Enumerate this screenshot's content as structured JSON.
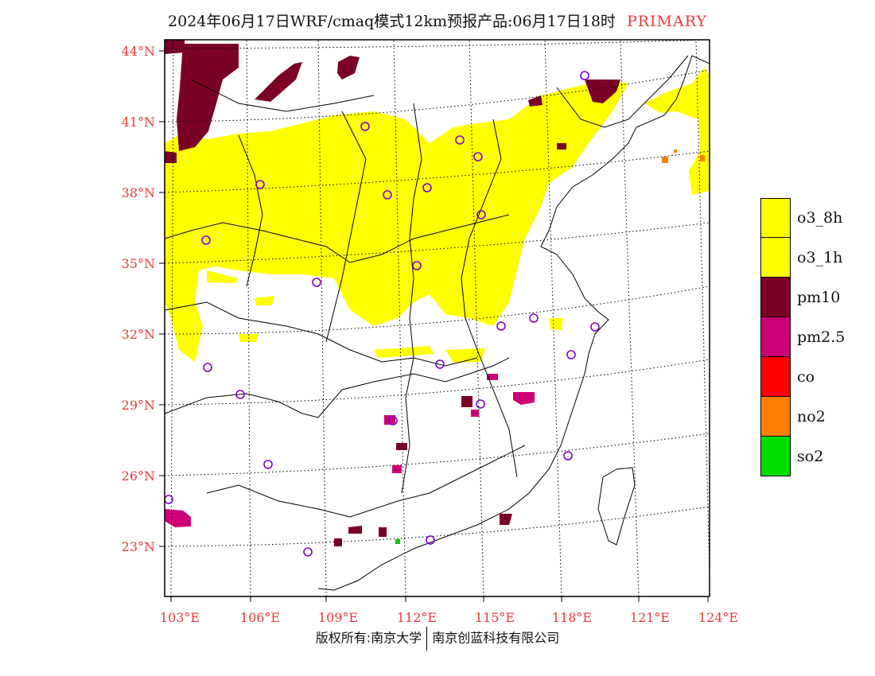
{
  "title": {
    "text": "2024年06月17日WRF/cmaq模式12km预报产品:06月17日18时",
    "tag": "PRIMARY",
    "tag_color": "#e83a3a"
  },
  "map": {
    "lat_labels": [
      "44°N",
      "41°N",
      "38°N",
      "35°N",
      "32°N",
      "29°N",
      "26°N",
      "23°N"
    ],
    "lon_labels": [
      "103°E",
      "106°E",
      "109°E",
      "112°E",
      "115°E",
      "118°E",
      "121°E",
      "124°E"
    ],
    "label_color": "#e83a3a"
  },
  "legend": {
    "items": [
      {
        "label": "o3_8h",
        "color": "#ffff00"
      },
      {
        "label": "o3_1h",
        "color": "#ffff00"
      },
      {
        "label": "pm10",
        "color": "#7b0026"
      },
      {
        "label": "pm2.5",
        "color": "#cc0077"
      },
      {
        "label": "co",
        "color": "#ff0000"
      },
      {
        "label": "no2",
        "color": "#ff7f00"
      },
      {
        "label": "so2",
        "color": "#00dd00"
      }
    ]
  },
  "footer": {
    "left": "版权所有:南京大学",
    "right": "南京创蓝科技有限公司"
  }
}
